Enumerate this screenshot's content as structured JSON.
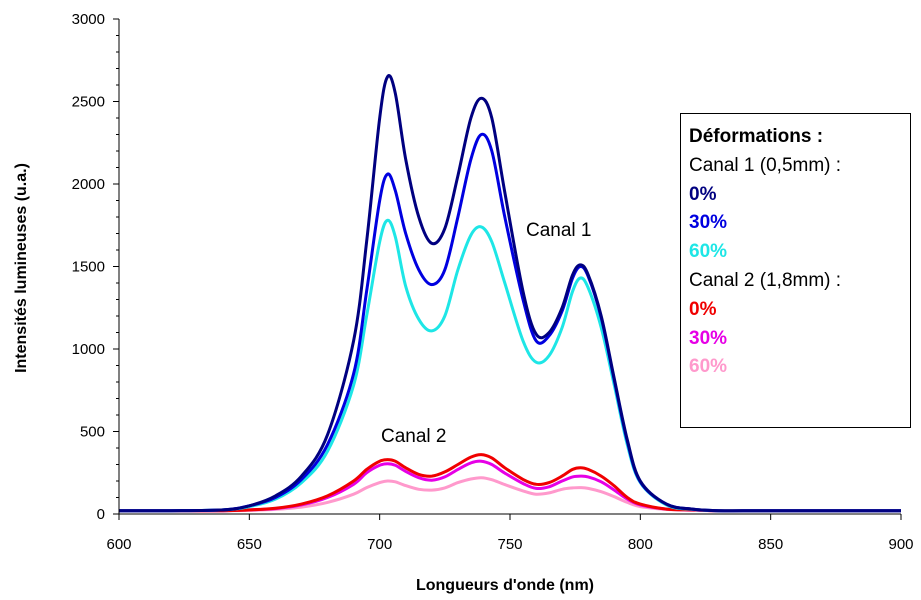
{
  "chart_data": {
    "type": "line",
    "title": "",
    "xlabel": "Longueurs d'onde (nm)",
    "ylabel": "Intensités lumineuses (u.a.)",
    "xlim": [
      600,
      900
    ],
    "ylim": [
      0,
      3000
    ],
    "x_ticks": [
      "600",
      "650",
      "700",
      "750",
      "800",
      "850",
      "900"
    ],
    "y_ticks": [
      "0",
      "500",
      "1000",
      "1500",
      "2000",
      "2500",
      "3000"
    ],
    "legend": {
      "title": "Déformations :",
      "placement": "right",
      "groups": [
        {
          "label": "Canal 1 (0,5mm) :",
          "entries": [
            "0%",
            "30%",
            "60%"
          ]
        },
        {
          "label": "Canal 2 (1,8mm) :",
          "entries": [
            "0%",
            "30%",
            "60%"
          ]
        }
      ]
    },
    "annotations": [
      {
        "text": "Canal 1"
      },
      {
        "text": "Canal 2"
      }
    ],
    "x": [
      600,
      620,
      640,
      650,
      660,
      670,
      680,
      690,
      695,
      700,
      703,
      706,
      710,
      715,
      720,
      725,
      730,
      735,
      739,
      743,
      748,
      755,
      760,
      765,
      770,
      774,
      777,
      780,
      785,
      790,
      795,
      800,
      810,
      820,
      830,
      850,
      900
    ],
    "series": [
      {
        "color": "#000080",
        "values": [
          20,
          20,
          25,
          50,
          110,
          230,
          480,
          1050,
          1650,
          2400,
          2650,
          2550,
          2150,
          1800,
          1640,
          1730,
          2050,
          2400,
          2520,
          2400,
          1950,
          1350,
          1090,
          1100,
          1250,
          1450,
          1510,
          1450,
          1200,
          820,
          450,
          200,
          60,
          30,
          20,
          20,
          20
        ]
      },
      {
        "color": "#0000E0",
        "values": [
          20,
          20,
          25,
          50,
          100,
          210,
          420,
          850,
          1350,
          1900,
          2060,
          1960,
          1700,
          1480,
          1390,
          1480,
          1800,
          2150,
          2300,
          2200,
          1800,
          1300,
          1050,
          1080,
          1230,
          1430,
          1500,
          1440,
          1190,
          810,
          440,
          195,
          60,
          30,
          20,
          20,
          20
        ]
      },
      {
        "color": "#1EE6E6",
        "values": [
          20,
          20,
          25,
          45,
          90,
          190,
          380,
          780,
          1200,
          1650,
          1780,
          1680,
          1380,
          1180,
          1110,
          1200,
          1480,
          1690,
          1740,
          1650,
          1400,
          1050,
          920,
          960,
          1130,
          1350,
          1430,
          1370,
          1130,
          780,
          420,
          190,
          55,
          28,
          20,
          20,
          20
        ]
      },
      {
        "color": "#F00000",
        "values": [
          20,
          20,
          20,
          25,
          35,
          60,
          110,
          200,
          270,
          320,
          330,
          320,
          280,
          240,
          230,
          255,
          300,
          345,
          360,
          340,
          280,
          210,
          180,
          190,
          230,
          270,
          280,
          270,
          230,
          170,
          100,
          60,
          30,
          25,
          20,
          20,
          20
        ]
      },
      {
        "color": "#E600E6",
        "values": [
          20,
          20,
          20,
          25,
          33,
          55,
          100,
          180,
          250,
          295,
          305,
          295,
          258,
          220,
          205,
          225,
          270,
          310,
          320,
          300,
          248,
          185,
          155,
          165,
          200,
          225,
          230,
          225,
          195,
          145,
          90,
          55,
          30,
          25,
          20,
          20,
          20
        ]
      },
      {
        "color": "#FF99CC",
        "values": [
          20,
          20,
          20,
          22,
          28,
          42,
          70,
          120,
          160,
          190,
          200,
          195,
          172,
          150,
          145,
          158,
          190,
          212,
          220,
          208,
          178,
          140,
          120,
          128,
          150,
          158,
          160,
          155,
          135,
          105,
          70,
          45,
          28,
          22,
          20,
          20,
          20
        ]
      }
    ]
  }
}
